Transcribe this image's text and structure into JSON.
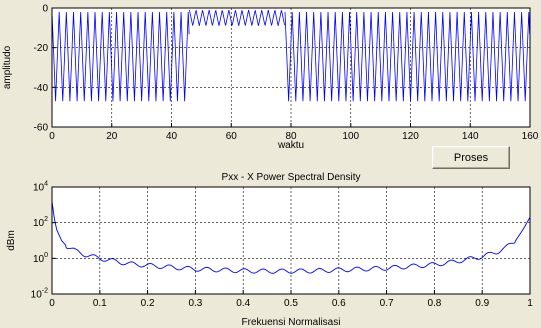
{
  "button": {
    "label": "Proses"
  },
  "chart_data": [
    {
      "type": "line",
      "title": "",
      "xlabel": "waktu",
      "ylabel": "amplitudo",
      "xlim": [
        0,
        160
      ],
      "ylim": [
        -60,
        0
      ],
      "xticks": [
        "0",
        "20",
        "40",
        "60",
        "80",
        "100",
        "120",
        "140",
        "160"
      ],
      "yticks": [
        "0",
        "-20",
        "-40",
        "-60"
      ],
      "grid": true,
      "color": "#0000ff",
      "series": [
        {
          "segment": "low-amplitude oscillation",
          "x_range": [
            0,
            46
          ],
          "min": -47,
          "max": -2,
          "period": 2.4
        },
        {
          "segment": "high oscillation",
          "x_range": [
            46,
            78
          ],
          "min": -9,
          "max": -1,
          "period": 2.2
        },
        {
          "segment": "low-amplitude oscillation",
          "x_range": [
            78,
            160
          ],
          "min": -47,
          "max": -2,
          "period": 2.4
        }
      ]
    },
    {
      "type": "line",
      "title": "Pxx - X Power Spectral Density",
      "xlabel": "Frekuensi Normalisasi",
      "ylabel": "dBm",
      "xlim": [
        0,
        1
      ],
      "ylim_log10": [
        -2,
        4
      ],
      "scale": "log",
      "xticks": [
        "0",
        "0.1",
        "0.2",
        "0.3",
        "0.4",
        "0.5",
        "0.6",
        "0.7",
        "0.8",
        "0.9",
        "1"
      ],
      "yticks": [
        "10^4",
        "10^2",
        "10^0",
        "10^-2"
      ],
      "grid": true,
      "color": "#0000ff",
      "x": [
        0,
        0.005,
        0.01,
        0.02,
        0.03,
        0.05,
        0.07,
        0.1,
        0.13,
        0.16,
        0.2,
        0.25,
        0.3,
        0.35,
        0.4,
        0.45,
        0.5,
        0.55,
        0.6,
        0.65,
        0.7,
        0.75,
        0.8,
        0.84,
        0.87,
        0.9,
        0.93,
        0.95,
        0.97,
        0.985,
        1
      ],
      "log10_y": [
        3.2,
        2.2,
        1.6,
        1.0,
        0.7,
        0.4,
        0.2,
        0.0,
        -0.15,
        -0.3,
        -0.4,
        -0.5,
        -0.6,
        -0.65,
        -0.7,
        -0.72,
        -0.72,
        -0.7,
        -0.65,
        -0.6,
        -0.55,
        -0.45,
        -0.35,
        -0.2,
        -0.05,
        0.1,
        0.35,
        0.6,
        1.0,
        1.6,
        2.3
      ]
    }
  ]
}
